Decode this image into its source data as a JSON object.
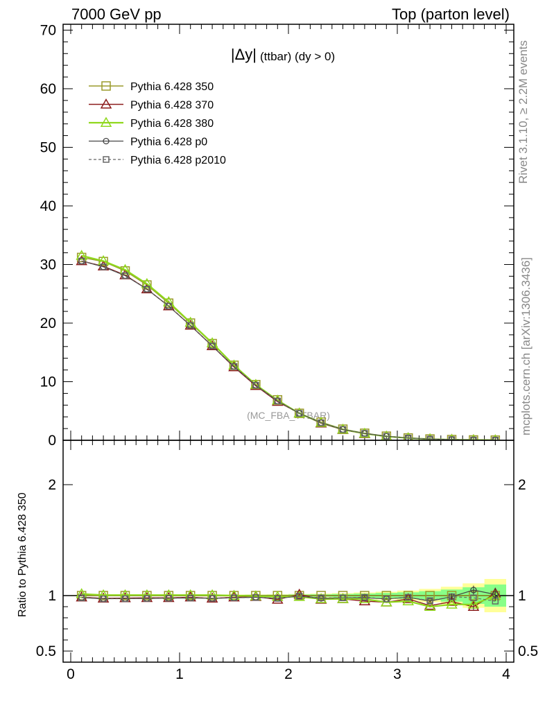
{
  "header": {
    "left": "7000 GeV pp",
    "right": "Top (parton level)"
  },
  "plot_title": {
    "main": "|Δy|",
    "sub": "(ttbar) (dy > 0)"
  },
  "watermark": "(MC_FBA_TTBAR)",
  "side_texts": {
    "rivet": "Rivet 3.1.10, ≥ 2.2M events",
    "mcplots": "mcplots.cern.ch [arXiv:1306.3436]"
  },
  "ratio_ylabel": "Ratio to Pythia 6.428 350",
  "colors": {
    "s350": "#9a9a2a",
    "s370": "#8b1a1a",
    "s380": "#8fd81c",
    "p0": "#444444",
    "p2010": "#666666",
    "band_yellow": "#ffff99",
    "band_green": "#88ff88"
  },
  "chart_data": [
    {
      "type": "line",
      "x": [
        0.1,
        0.3,
        0.5,
        0.7,
        0.9,
        1.1,
        1.3,
        1.5,
        1.7,
        1.9,
        2.1,
        2.3,
        2.5,
        2.7,
        2.9,
        3.1,
        3.3,
        3.5,
        3.7,
        3.9
      ],
      "xlim": [
        -0.07,
        4.07
      ],
      "ylim": [
        0,
        71
      ],
      "yticks": [
        "0",
        "10",
        "20",
        "30",
        "40",
        "50",
        "60",
        "70"
      ],
      "series": [
        {
          "name": "Pythia 6.428 350",
          "values": [
            31.2,
            30.5,
            28.9,
            26.5,
            23.4,
            20.0,
            16.5,
            12.8,
            9.5,
            6.9,
            4.6,
            3.1,
            1.9,
            1.2,
            0.7,
            0.4,
            0.22,
            0.12,
            0.06,
            0.03
          ]
        },
        {
          "name": "Pythia 6.428 370",
          "values": [
            30.6,
            29.7,
            28.2,
            25.8,
            22.9,
            19.6,
            16.1,
            12.5,
            9.3,
            6.6,
            4.6,
            2.9,
            1.8,
            1.1,
            0.65,
            0.38,
            0.2,
            0.11,
            0.055,
            0.03
          ]
        },
        {
          "name": "Pythia 6.428 380",
          "values": [
            31.5,
            30.6,
            29.1,
            26.7,
            23.6,
            20.1,
            16.6,
            12.8,
            9.5,
            6.8,
            4.6,
            3.0,
            1.85,
            1.15,
            0.66,
            0.38,
            0.2,
            0.11,
            0.055,
            0.03
          ]
        },
        {
          "name": "Pythia 6.428 p0",
          "values": [
            30.6,
            29.6,
            28.1,
            25.8,
            22.9,
            19.6,
            16.1,
            12.6,
            9.4,
            6.7,
            4.6,
            3.0,
            1.85,
            1.18,
            0.68,
            0.39,
            0.21,
            0.12,
            0.063,
            0.031
          ]
        },
        {
          "name": "Pythia 6.428 p2010",
          "values": [
            30.6,
            29.6,
            28.1,
            25.8,
            22.9,
            19.6,
            16.1,
            12.6,
            9.4,
            6.7,
            4.6,
            3.0,
            1.85,
            1.18,
            0.68,
            0.39,
            0.21,
            0.12,
            0.06,
            0.029
          ]
        }
      ]
    },
    {
      "type": "line",
      "x": [
        0.1,
        0.3,
        0.5,
        0.7,
        0.9,
        1.1,
        1.3,
        1.5,
        1.7,
        1.9,
        2.1,
        2.3,
        2.5,
        2.7,
        2.9,
        3.1,
        3.3,
        3.5,
        3.7,
        3.9
      ],
      "xlim": [
        -0.07,
        4.07
      ],
      "ylim": [
        0.4,
        2.4
      ],
      "yticks": [
        "0.5",
        "1",
        "2"
      ],
      "xticks": [
        "0",
        "1",
        "2",
        "3",
        "4"
      ],
      "ylabel": "Ratio to Pythia 6.428 350",
      "band_yellow_halfwidth": [
        0.005,
        0.005,
        0.006,
        0.006,
        0.007,
        0.007,
        0.008,
        0.009,
        0.01,
        0.012,
        0.015,
        0.018,
        0.022,
        0.028,
        0.035,
        0.045,
        0.06,
        0.08,
        0.11,
        0.15
      ],
      "band_green_halfwidth": [
        0.003,
        0.003,
        0.004,
        0.004,
        0.004,
        0.005,
        0.005,
        0.006,
        0.007,
        0.008,
        0.01,
        0.012,
        0.015,
        0.019,
        0.024,
        0.03,
        0.04,
        0.055,
        0.075,
        0.1
      ],
      "series": [
        {
          "name": "Pythia 6.428 350",
          "values": [
            1,
            1,
            1,
            1,
            1,
            1,
            1,
            1,
            1,
            1,
            1,
            1,
            1,
            1,
            1,
            1,
            1,
            1,
            1,
            1
          ]
        },
        {
          "name": "Pythia 6.428 370",
          "values": [
            0.985,
            0.975,
            0.978,
            0.98,
            0.98,
            0.985,
            0.975,
            0.985,
            0.99,
            0.965,
            1.01,
            0.965,
            0.97,
            0.95,
            0.94,
            0.97,
            0.91,
            0.945,
            0.9,
            1.02
          ]
        },
        {
          "name": "Pythia 6.428 380",
          "values": [
            1.015,
            1.005,
            1.005,
            1.005,
            1.005,
            1.005,
            1.005,
            1.0,
            0.995,
            0.99,
            0.99,
            0.97,
            0.97,
            0.97,
            0.94,
            0.95,
            0.9,
            0.92,
            0.92,
            1.0
          ]
        },
        {
          "name": "Pythia 6.428 p0",
          "values": [
            0.982,
            0.972,
            0.973,
            0.974,
            0.977,
            0.979,
            0.975,
            0.98,
            0.985,
            0.975,
            0.995,
            0.975,
            0.98,
            0.98,
            0.97,
            0.985,
            0.95,
            0.99,
            1.05,
            1.01
          ]
        },
        {
          "name": "Pythia 6.428 p2010",
          "values": [
            0.98,
            0.971,
            0.972,
            0.974,
            0.976,
            0.978,
            0.975,
            0.98,
            0.983,
            0.975,
            0.995,
            0.98,
            0.98,
            0.985,
            0.97,
            0.985,
            0.955,
            0.99,
            0.98,
            0.95
          ]
        }
      ]
    }
  ]
}
